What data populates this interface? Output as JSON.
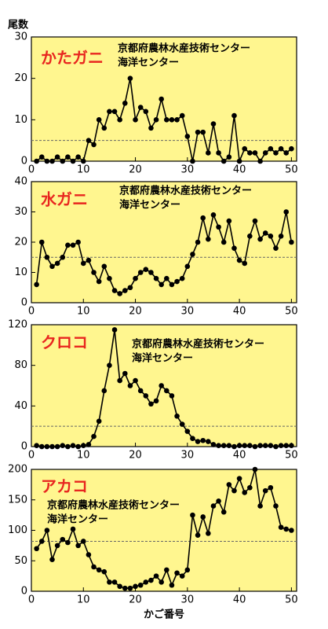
{
  "chart_data": [
    {
      "type": "line",
      "ylabel": "尾数",
      "title": "かたガニ",
      "annotation": [
        "京都府農林水産技術センター",
        "海洋センター"
      ],
      "x": [
        1,
        2,
        3,
        4,
        5,
        6,
        7,
        8,
        9,
        10,
        11,
        12,
        13,
        14,
        15,
        16,
        17,
        18,
        19,
        20,
        21,
        22,
        23,
        24,
        25,
        26,
        27,
        28,
        29,
        30,
        31,
        32,
        33,
        34,
        35,
        36,
        37,
        38,
        39,
        40,
        41,
        42,
        43,
        44,
        45,
        46,
        47,
        48,
        49,
        50
      ],
      "values": [
        0,
        1,
        0,
        0,
        1,
        0,
        1,
        0,
        1,
        0,
        5,
        4,
        10,
        8,
        12,
        12,
        10,
        14,
        20,
        10,
        13,
        12,
        8,
        10,
        15,
        10,
        10,
        10,
        11,
        6,
        0,
        7,
        7,
        2,
        9,
        2,
        0,
        1,
        11,
        0,
        3,
        2,
        2,
        0,
        2,
        3,
        2,
        3,
        2,
        3
      ],
      "hline": 5,
      "color": "#000000",
      "panel_color": "#fff68f",
      "xlim": [
        0,
        51
      ],
      "xticks": [
        0,
        10,
        20,
        30,
        40,
        50
      ],
      "ylim": [
        0,
        30
      ],
      "yticks": [
        0,
        10,
        20,
        30
      ]
    },
    {
      "type": "line",
      "title": "水ガニ",
      "annotation": [
        "京都府農林水産技術センター",
        "海洋センター"
      ],
      "x": [
        1,
        2,
        3,
        4,
        5,
        6,
        7,
        8,
        9,
        10,
        11,
        12,
        13,
        14,
        15,
        16,
        17,
        18,
        19,
        20,
        21,
        22,
        23,
        24,
        25,
        26,
        27,
        28,
        29,
        30,
        31,
        32,
        33,
        34,
        35,
        36,
        37,
        38,
        39,
        40,
        41,
        42,
        43,
        44,
        45,
        46,
        47,
        48,
        49,
        50
      ],
      "values": [
        6,
        20,
        15,
        12,
        13,
        15,
        19,
        19,
        20,
        13,
        14,
        10,
        7,
        12,
        8,
        4,
        3,
        4,
        5,
        8,
        10,
        11,
        10,
        8,
        6,
        8,
        6,
        7,
        8,
        12,
        16,
        20,
        28,
        21,
        29,
        25,
        20,
        27,
        18,
        14,
        13,
        22,
        27,
        21,
        23,
        22,
        18,
        22,
        30,
        20
      ],
      "hline": 15,
      "color": "#000000",
      "panel_color": "#fff68f",
      "xlim": [
        0,
        51
      ],
      "xticks": [
        0,
        10,
        20,
        30,
        40,
        50
      ],
      "ylim": [
        0,
        40
      ],
      "yticks": [
        0,
        10,
        20,
        30,
        40
      ]
    },
    {
      "type": "line",
      "title": "クロコ",
      "annotation": [
        "京都府農林水産技術センター",
        "海洋センター"
      ],
      "x": [
        1,
        2,
        3,
        4,
        5,
        6,
        7,
        8,
        9,
        10,
        11,
        12,
        13,
        14,
        15,
        16,
        17,
        18,
        19,
        20,
        21,
        22,
        23,
        24,
        25,
        26,
        27,
        28,
        29,
        30,
        31,
        32,
        33,
        34,
        35,
        36,
        37,
        38,
        39,
        40,
        41,
        42,
        43,
        44,
        45,
        46,
        47,
        48,
        49,
        50
      ],
      "values": [
        1,
        0,
        0,
        0,
        0,
        1,
        0,
        1,
        0,
        1,
        2,
        10,
        25,
        55,
        80,
        115,
        65,
        72,
        60,
        65,
        55,
        50,
        42,
        45,
        60,
        55,
        50,
        30,
        22,
        15,
        8,
        5,
        6,
        5,
        2,
        1,
        1,
        1,
        0,
        1,
        1,
        1,
        0,
        1,
        1,
        1,
        0,
        1,
        1,
        1
      ],
      "hline": 20,
      "color": "#000000",
      "panel_color": "#fff68f",
      "xlim": [
        0,
        51
      ],
      "xticks": [
        0,
        10,
        20,
        30,
        40,
        50
      ],
      "ylim": [
        0,
        120
      ],
      "yticks": [
        0,
        40,
        80,
        120
      ]
    },
    {
      "type": "line",
      "title": "アカコ",
      "annotation": [
        "京都府農林水産技術センター",
        "海洋センター"
      ],
      "xlabel": "かご番号",
      "x": [
        1,
        2,
        3,
        4,
        5,
        6,
        7,
        8,
        9,
        10,
        11,
        12,
        13,
        14,
        15,
        16,
        17,
        18,
        19,
        20,
        21,
        22,
        23,
        24,
        25,
        26,
        27,
        28,
        29,
        30,
        31,
        32,
        33,
        34,
        35,
        36,
        37,
        38,
        39,
        40,
        41,
        42,
        43,
        44,
        45,
        46,
        47,
        48,
        49,
        50
      ],
      "values": [
        70,
        82,
        100,
        52,
        75,
        85,
        80,
        102,
        75,
        82,
        60,
        40,
        35,
        32,
        15,
        15,
        8,
        5,
        5,
        8,
        10,
        15,
        18,
        25,
        15,
        35,
        10,
        30,
        25,
        35,
        125,
        92,
        122,
        95,
        140,
        148,
        130,
        175,
        165,
        185,
        162,
        170,
        200,
        140,
        165,
        170,
        140,
        105,
        102,
        100
      ],
      "hline": 82,
      "color": "#000000",
      "panel_color": "#fff68f",
      "xlim": [
        0,
        51
      ],
      "xticks": [
        0,
        10,
        20,
        30,
        40,
        50
      ],
      "ylim": [
        0,
        200
      ],
      "yticks": [
        0,
        50,
        100,
        150,
        200
      ]
    }
  ]
}
